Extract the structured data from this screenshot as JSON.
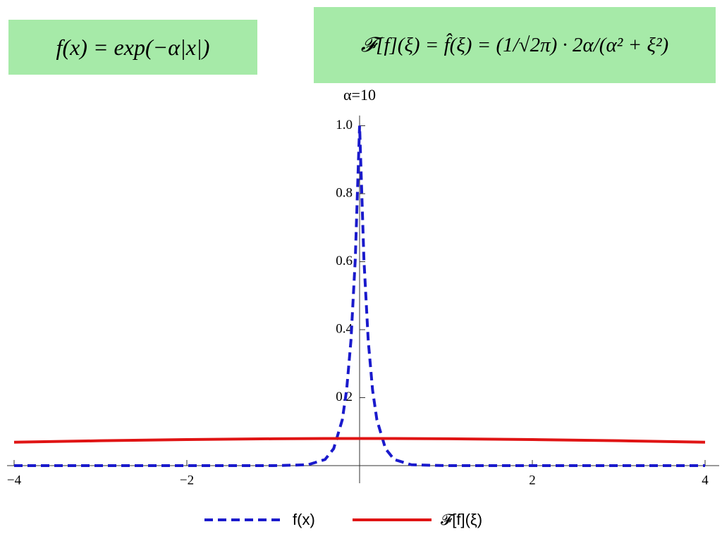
{
  "chart_data": {
    "type": "line",
    "title": "α=10",
    "annotations": [
      "f(x) = exp(−α|x|)",
      "𝓕[f](ξ) = f̂(ξ) = (1/√2π) · 2α/(α² + ξ²)"
    ],
    "x": [
      -4,
      -3,
      -2,
      -1,
      -0.6,
      -0.4,
      -0.3,
      -0.2,
      -0.15,
      -0.1,
      -0.05,
      0,
      0.05,
      0.1,
      0.15,
      0.2,
      0.3,
      0.4,
      0.6,
      1,
      2,
      3,
      4
    ],
    "series": [
      {
        "name": "f(x)",
        "color": "#1a1acc",
        "dash": true,
        "values": [
          0,
          0,
          0,
          0,
          0.0025,
          0.018,
          0.05,
          0.135,
          0.223,
          0.368,
          0.607,
          1,
          0.607,
          0.368,
          0.223,
          0.135,
          0.05,
          0.018,
          0.0025,
          0,
          0,
          0,
          0
        ]
      },
      {
        "name": "𝓕[f](ξ)",
        "color": "#e01414",
        "dash": false,
        "values": [
          0.0688,
          0.0732,
          0.0767,
          0.079,
          0.0795,
          0.0797,
          0.0798,
          0.0798,
          0.0798,
          0.0798,
          0.0798,
          0.0798,
          0.0798,
          0.0798,
          0.0798,
          0.0798,
          0.0798,
          0.0797,
          0.0795,
          0.079,
          0.0767,
          0.0732,
          0.0688
        ]
      }
    ],
    "xlim": [
      -4,
      4
    ],
    "ylim": [
      0,
      1.03
    ],
    "xticks": [
      {
        "value": -4,
        "label": "−4"
      },
      {
        "value": -2,
        "label": "−2"
      },
      2,
      4
    ],
    "yticks": [
      0.2,
      0.4,
      0.6,
      0.8,
      {
        "value": 1,
        "label": "1.0"
      }
    ]
  }
}
